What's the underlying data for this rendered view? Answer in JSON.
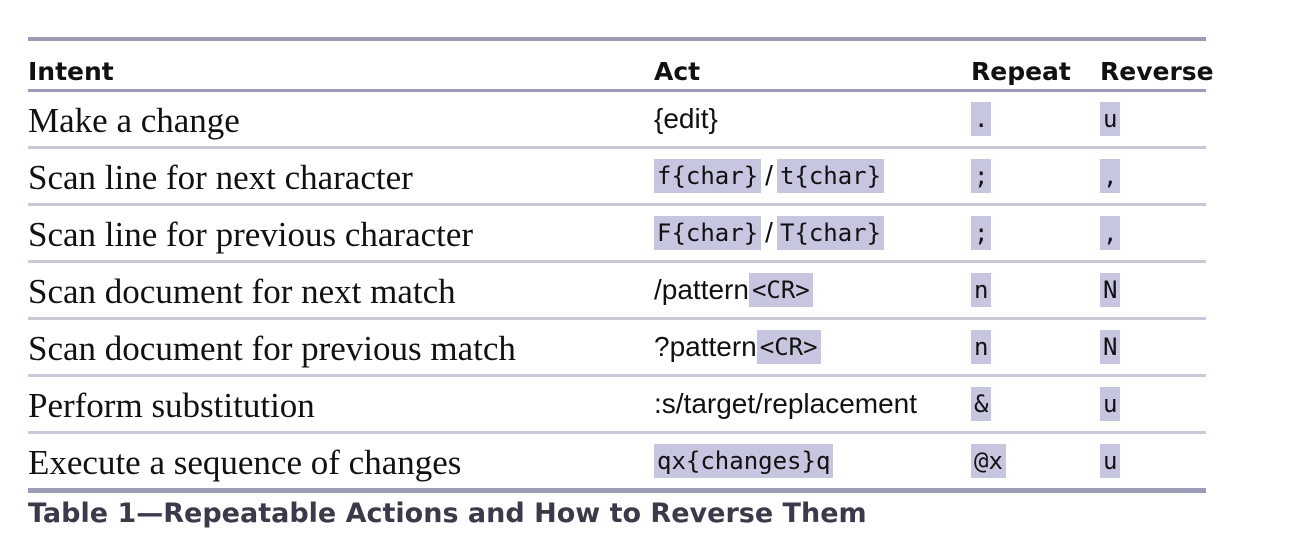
{
  "table": {
    "headers": {
      "intent": "Intent",
      "act": "Act",
      "repeat": "Repeat",
      "reverse": "Reverse"
    },
    "rows": [
      {
        "intent": "Make a change",
        "act": {
          "plain1": "{edit}"
        },
        "repeat": ".",
        "reverse": "u"
      },
      {
        "intent": "Scan line for next character",
        "act": {
          "code1": "f{char}",
          "sep": "/",
          "code2": "t{char}"
        },
        "repeat": ";",
        "reverse": ","
      },
      {
        "intent": "Scan line for previous character",
        "act": {
          "code1": "F{char}",
          "sep": "/",
          "code2": "T{char}"
        },
        "repeat": ";",
        "reverse": ","
      },
      {
        "intent": "Scan document for next match",
        "act": {
          "plain1": "/pattern",
          "code1": "<CR>"
        },
        "repeat": "n",
        "reverse": "N"
      },
      {
        "intent": "Scan document for previous match",
        "act": {
          "plain1": "?pattern",
          "code1": "<CR>"
        },
        "repeat": "n",
        "reverse": "N"
      },
      {
        "intent": "Perform substitution",
        "act": {
          "plain1": ":s/target/replacement"
        },
        "repeat": "&",
        "reverse": "u"
      },
      {
        "intent": "Execute a sequence of changes",
        "act": {
          "code1": "qx{changes}q"
        },
        "repeat": "@x",
        "reverse": "u"
      }
    ]
  },
  "caption": "Table 1—Repeatable Actions and How to Reverse Them",
  "colors": {
    "rule": "#9c9cb6",
    "row_divider": "#c8c8d8",
    "code_highlight": "#c6c6e0",
    "caption_text": "#3a3a4a"
  }
}
